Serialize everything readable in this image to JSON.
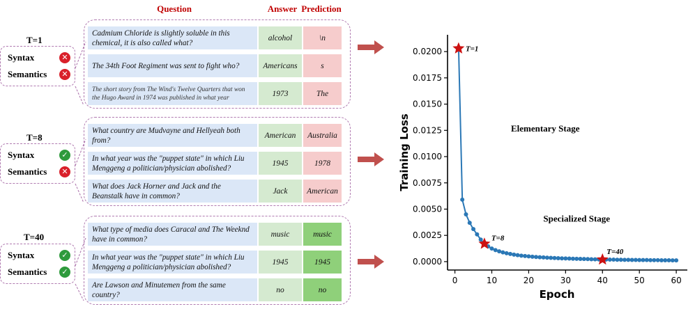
{
  "headers": {
    "question": "Question",
    "answer": "Answer",
    "prediction": "Prediction"
  },
  "groups": [
    {
      "t_label": "T=1",
      "syntax_label": "Syntax",
      "syntax_ok": false,
      "semantics_label": "Semantics",
      "semantics_ok": false,
      "rows": [
        {
          "question": "Cadmium Chloride is slightly soluble in this chemical, it is also called what?",
          "answer": "alcohol",
          "prediction": "\\n",
          "correct": false
        },
        {
          "question": "The 34th Foot Regiment was sent to fight who?",
          "answer": "Americans",
          "prediction": "s",
          "correct": false
        },
        {
          "question": "The short story from The Wind's Twelve Quarters that won the Hugo Award in 1974 was published in what year",
          "answer": "1973",
          "prediction": "The",
          "correct": false
        }
      ]
    },
    {
      "t_label": "T=8",
      "syntax_label": "Syntax",
      "syntax_ok": true,
      "semantics_label": "Semantics",
      "semantics_ok": false,
      "rows": [
        {
          "question": "What country are Mudvayne and Hellyeah both from?",
          "answer": "American",
          "prediction": "Australia",
          "correct": false
        },
        {
          "question": "In what year was the \"puppet state\" in which Liu Menggeng a politician/physician abolished?",
          "answer": "1945",
          "prediction": "1978",
          "correct": false
        },
        {
          "question": "What does Jack Horner and Jack and the Beanstalk have in common?",
          "answer": "Jack",
          "prediction": "American",
          "correct": false
        }
      ]
    },
    {
      "t_label": "T=40",
      "syntax_label": "Syntax",
      "syntax_ok": true,
      "semantics_label": "Semantics",
      "semantics_ok": true,
      "rows": [
        {
          "question": "What type of media does Caracal and The Weeknd have in common?",
          "answer": "music",
          "prediction": "music",
          "correct": true
        },
        {
          "question": "In what year was the \"puppet state\" in which Liu Menggeng a politician/physician abolished?",
          "answer": "1945",
          "prediction": "1945",
          "correct": true
        },
        {
          "question": "Are Lawson and Minutemen from the same country?",
          "answer": "no",
          "prediction": "no",
          "correct": true
        }
      ]
    }
  ],
  "colors": {
    "header_red": "#c00000",
    "question_bg": "#dbe7f7",
    "answer_bg": "#d5ead0",
    "wrong_pred_bg": "#f6cccc",
    "right_pred_bg": "#8fd07a",
    "error_badge": "#d9202a",
    "ok_badge": "#2e9a3c",
    "arrow": "#c0504d",
    "line": "#2b78b6",
    "star": "#cc1111"
  },
  "chart_data": {
    "type": "line",
    "xlabel": "Epoch",
    "ylabel": "Training Loss",
    "xlim": [
      -2,
      63
    ],
    "ylim": [
      -0.0008,
      0.0216
    ],
    "xticks": [
      0,
      10,
      20,
      30,
      40,
      50,
      60
    ],
    "yticks": [
      0.0,
      0.0025,
      0.005,
      0.0075,
      0.01,
      0.0125,
      0.015,
      0.0175,
      0.02
    ],
    "xtick_labels": [
      "0",
      "10",
      "20",
      "30",
      "40",
      "50",
      "60"
    ],
    "ytick_labels": [
      "0.0000",
      "0.0025",
      "0.0050",
      "0.0075",
      "0.0100",
      "0.0125",
      "0.0150",
      "0.0175",
      "0.0200"
    ],
    "grid": false,
    "x": [
      1,
      2,
      3,
      4,
      5,
      6,
      7,
      8,
      9,
      10,
      11,
      12,
      13,
      14,
      15,
      16,
      17,
      18,
      19,
      20,
      21,
      22,
      23,
      24,
      25,
      26,
      27,
      28,
      29,
      30,
      31,
      32,
      33,
      34,
      35,
      36,
      37,
      38,
      39,
      40,
      41,
      42,
      43,
      44,
      45,
      46,
      47,
      48,
      49,
      50,
      51,
      52,
      53,
      54,
      55,
      56,
      57,
      58,
      59,
      60
    ],
    "y": [
      0.0203,
      0.0059,
      0.0045,
      0.0037,
      0.0031,
      0.0026,
      0.0021,
      0.0017,
      0.00145,
      0.00125,
      0.0011,
      0.00098,
      0.00088,
      0.0008,
      0.00073,
      0.00067,
      0.00062,
      0.00057,
      0.00053,
      0.0005,
      0.00047,
      0.00044,
      0.00042,
      0.0004,
      0.00038,
      0.00036,
      0.00034,
      0.00033,
      0.00031,
      0.0003,
      0.00029,
      0.00028,
      0.00027,
      0.00026,
      0.00025,
      0.00024,
      0.00023,
      0.00022,
      0.00021,
      0.0002,
      0.0002,
      0.00019,
      0.00019,
      0.00018,
      0.00018,
      0.00017,
      0.00017,
      0.00016,
      0.00016,
      0.00015,
      0.00015,
      0.00015,
      0.00014,
      0.00014,
      0.00014,
      0.00013,
      0.00013,
      0.00013,
      0.00012,
      0.00012
    ],
    "highlights": [
      {
        "epoch": 1,
        "loss": 0.0203,
        "label": "T=1"
      },
      {
        "epoch": 8,
        "loss": 0.0017,
        "label": "T=8"
      },
      {
        "epoch": 40,
        "loss": 0.0002,
        "label": "T=40"
      }
    ],
    "annotations": [
      {
        "text": "Elementary Stage",
        "x": 24.5,
        "y": 0.0124
      },
      {
        "text": "Specialized Stage",
        "x": 33,
        "y": 0.0038
      }
    ]
  }
}
